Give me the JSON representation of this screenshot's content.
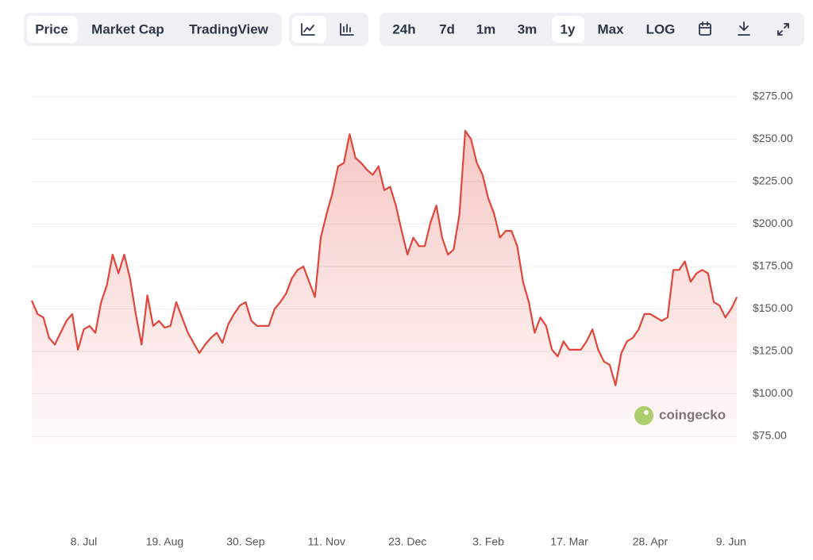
{
  "toolbar": {
    "tabs": [
      "Price",
      "Market Cap",
      "TradingView"
    ],
    "ranges": [
      "24h",
      "7d",
      "1m",
      "3m",
      "1y",
      "Max",
      "LOG"
    ]
  },
  "watermark": "coingecko",
  "chart_data": {
    "type": "area",
    "color": "#e0473c",
    "categories": [
      null,
      null,
      null,
      null,
      null,
      null,
      null,
      null,
      null,
      "8. Jul",
      null,
      null,
      null,
      null,
      null,
      null,
      null,
      null,
      null,
      null,
      null,
      null,
      null,
      "19. Aug",
      null,
      null,
      null,
      null,
      null,
      null,
      null,
      null,
      null,
      null,
      null,
      null,
      null,
      "30. Sep",
      null,
      null,
      null,
      null,
      null,
      null,
      null,
      null,
      null,
      null,
      null,
      null,
      null,
      "11. Nov",
      null,
      null,
      null,
      null,
      null,
      null,
      null,
      null,
      null,
      null,
      null,
      null,
      null,
      "23. Dec",
      null,
      null,
      null,
      null,
      null,
      null,
      null,
      null,
      null,
      null,
      null,
      null,
      null,
      "3. Feb",
      null,
      null,
      null,
      null,
      null,
      null,
      null,
      null,
      null,
      null,
      null,
      null,
      null,
      "17. Mar",
      null,
      null,
      null,
      null,
      null,
      null,
      null,
      null,
      null,
      null,
      null,
      null,
      null,
      "28. Apr",
      null,
      null,
      null,
      null,
      null,
      null,
      null,
      null,
      null,
      null,
      null,
      null,
      null,
      "9. Jun",
      null
    ],
    "values": [
      155,
      147,
      145,
      133,
      129,
      136,
      143,
      147,
      126,
      138,
      140,
      136,
      154,
      164,
      182,
      171,
      182,
      168,
      147,
      129,
      158,
      140,
      143,
      139,
      140,
      154,
      145,
      136,
      130,
      124,
      129,
      133,
      136,
      130,
      141,
      147,
      152,
      154,
      143,
      140,
      140,
      140,
      150,
      154,
      159,
      168,
      173,
      175,
      166,
      157,
      192,
      206,
      218,
      234,
      236,
      253,
      239,
      236,
      232,
      229,
      234,
      220,
      222,
      211,
      196,
      182,
      192,
      187,
      187,
      201,
      211,
      192,
      182,
      185,
      206,
      255,
      250,
      236,
      229,
      215,
      206,
      192,
      196,
      196,
      187,
      166,
      154,
      136,
      145,
      140,
      126,
      122,
      131,
      126,
      126,
      126,
      131,
      138,
      126,
      119,
      117,
      105,
      124,
      131,
      133,
      138,
      147,
      147,
      145,
      143,
      145,
      173,
      173,
      178,
      166,
      171,
      173,
      171,
      154,
      152,
      145,
      150,
      157
    ],
    "ylim": [
      75,
      275
    ],
    "yticks": [
      {
        "value": 75,
        "label": "$75.00"
      },
      {
        "value": 100,
        "label": "$100.00"
      },
      {
        "value": 125,
        "label": "$125.00"
      },
      {
        "value": 150,
        "label": "$150.00"
      },
      {
        "value": 175,
        "label": "$175.00"
      },
      {
        "value": 200,
        "label": "$200.00"
      },
      {
        "value": 225,
        "label": "$225.00"
      },
      {
        "value": 250,
        "label": "$250.00"
      },
      {
        "value": 275,
        "label": "$275.00"
      }
    ],
    "grid": true
  }
}
